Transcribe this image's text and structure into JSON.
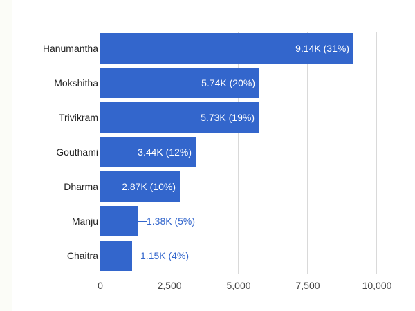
{
  "chart_data": {
    "type": "bar",
    "orientation": "horizontal",
    "title": "",
    "xlabel": "",
    "ylabel": "",
    "categories": [
      "Hanumantha",
      "Mokshitha",
      "Trivikram",
      "Gouthami",
      "Dharma",
      "Manju",
      "Chaitra"
    ],
    "values": [
      9140,
      5740,
      5730,
      3440,
      2870,
      1380,
      1150
    ],
    "data_labels": [
      "9.14K (31%)",
      "5.74K (20%)",
      "5.73K (19%)",
      "3.44K (12%)",
      "2.87K (10%)",
      "1.38K (5%)",
      "1.15K (4%)"
    ],
    "percentages": [
      31,
      20,
      19,
      12,
      10,
      5,
      4
    ],
    "xlim": [
      0,
      10000
    ],
    "xticks": [
      "0",
      "2,500",
      "5,000",
      "7,500",
      "10,000"
    ],
    "grid": true,
    "legend": "none",
    "bar_color": "#3366cc"
  },
  "colors": {
    "bar": "#3366cc",
    "inside_label": "#ffffff",
    "outside_label": "#3366cc",
    "grid": "#d9d9d9",
    "category_text": "#222222",
    "tick_text": "#444444"
  }
}
